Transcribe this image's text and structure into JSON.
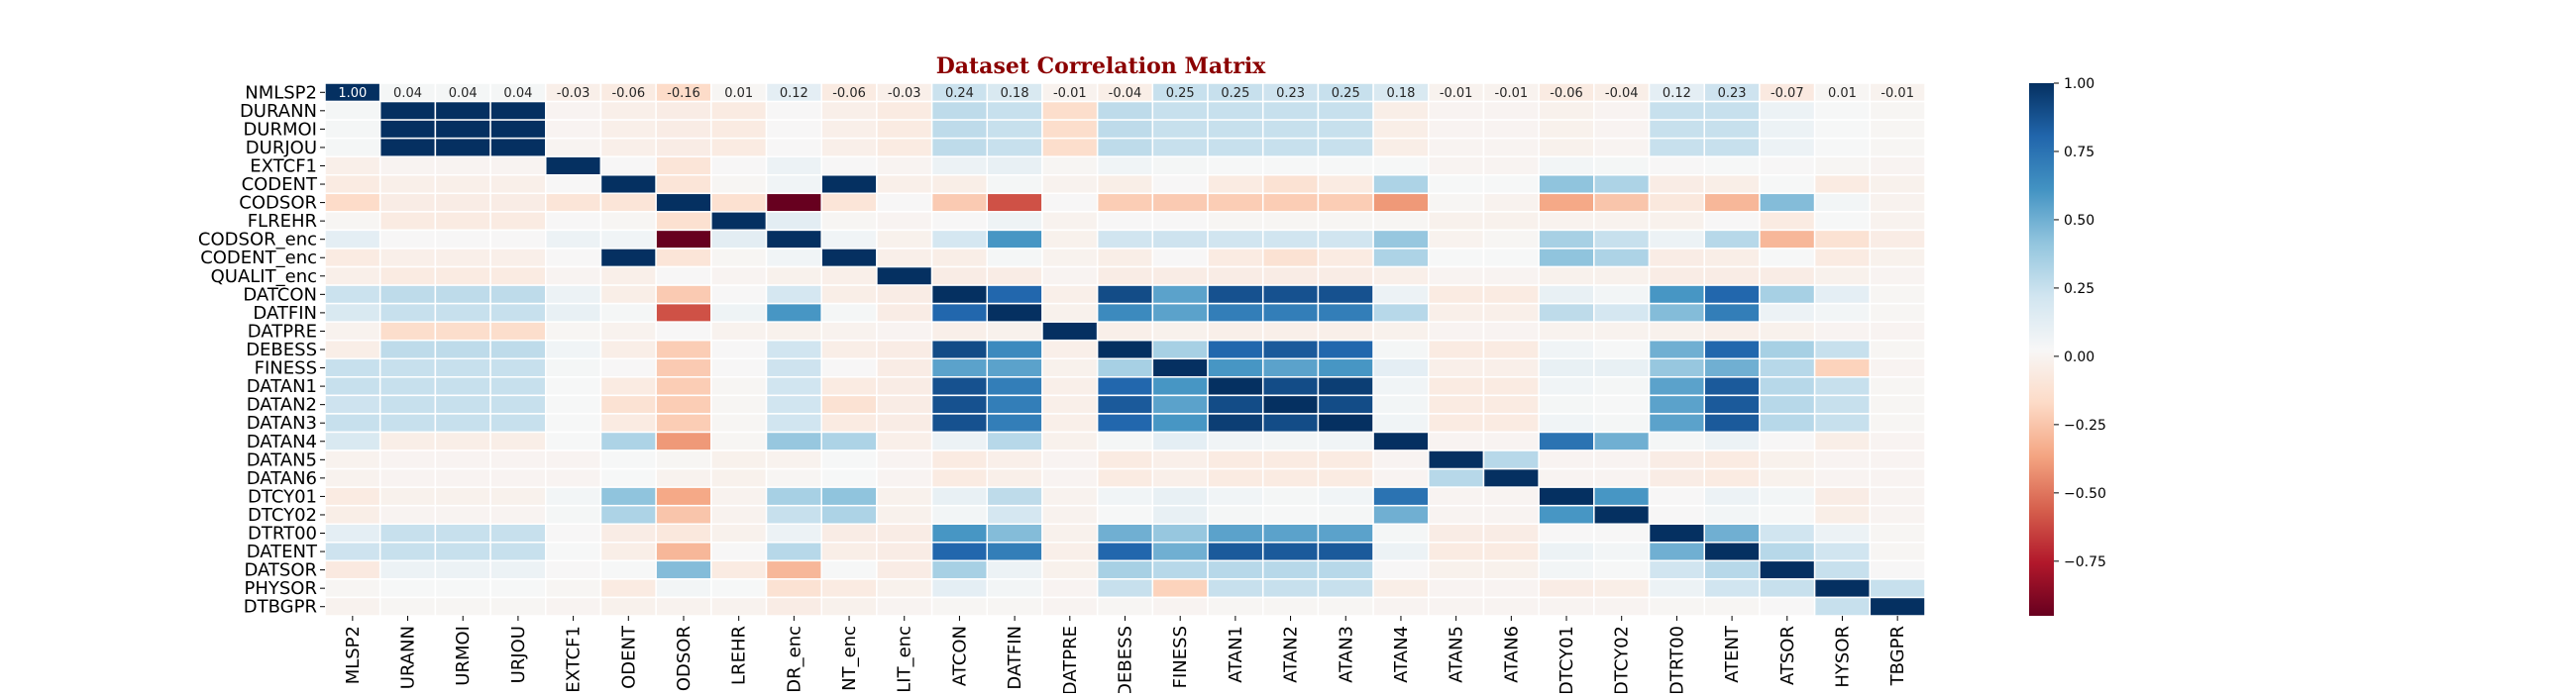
{
  "chart_data": {
    "type": "heatmap",
    "title": "Dataset Correlation Matrix",
    "variables": [
      "NMLSP2",
      "DURANN",
      "DURMOI",
      "DURJOU",
      "EXTCF1",
      "CODENT",
      "CODSOR",
      "FLREHR",
      "CODSOR_enc",
      "CODENT_enc",
      "QUALIT_enc",
      "DATCON",
      "DATFIN",
      "DATPRE",
      "DEBESS",
      "FINESS",
      "DATAN1",
      "DATAN2",
      "DATAN3",
      "DATAN4",
      "DATAN5",
      "DATAN6",
      "DTCY01",
      "DTCY02",
      "DTRT00",
      "DATENT",
      "DATSOR",
      "PHYSOR",
      "DTBGPR"
    ],
    "x_tick_labels": [
      "MLSP2",
      "URANN",
      "URMOI",
      "URJOU",
      "EXTCF1",
      "ODENT",
      "ODSOR",
      "LREHR",
      "DR_enc",
      "NT_enc",
      "LIT_enc",
      "ATCON",
      "DATFIN",
      "DATPRE",
      "DEBESS",
      "FINESS",
      "ATAN1",
      "ATAN2",
      "ATAN3",
      "ATAN4",
      "ATAN5",
      "ATAN6",
      "DTCY01",
      "DTCY02",
      "DTRT00",
      "ATENT",
      "ATSOR",
      "HYSOR",
      "TBGPR"
    ],
    "matrix": [
      [
        1.0,
        0.04,
        0.04,
        0.04,
        -0.03,
        -0.06,
        -0.16,
        0.01,
        0.12,
        -0.06,
        -0.03,
        0.24,
        0.18,
        -0.01,
        -0.04,
        0.25,
        0.25,
        0.23,
        0.25,
        0.18,
        -0.01,
        -0.01,
        -0.06,
        -0.04,
        0.12,
        0.23,
        -0.07,
        0.01,
        -0.01
      ],
      [
        0.04,
        1.0,
        1.0,
        1.0,
        0.0,
        -0.03,
        -0.05,
        -0.06,
        0.02,
        -0.03,
        -0.06,
        0.28,
        0.25,
        -0.15,
        0.28,
        0.25,
        0.25,
        0.25,
        0.25,
        -0.04,
        0.0,
        0.0,
        -0.02,
        0.0,
        0.25,
        0.25,
        0.08,
        0.03,
        0.01
      ],
      [
        0.04,
        1.0,
        1.0,
        1.0,
        0.0,
        -0.03,
        -0.05,
        -0.06,
        0.02,
        -0.03,
        -0.06,
        0.28,
        0.25,
        -0.15,
        0.28,
        0.25,
        0.25,
        0.25,
        0.25,
        -0.04,
        0.0,
        0.0,
        -0.02,
        0.0,
        0.25,
        0.25,
        0.08,
        0.03,
        0.01
      ],
      [
        0.04,
        1.0,
        1.0,
        1.0,
        0.0,
        -0.03,
        -0.05,
        -0.06,
        0.02,
        -0.03,
        -0.06,
        0.28,
        0.25,
        -0.15,
        0.28,
        0.25,
        0.25,
        0.25,
        0.25,
        -0.04,
        0.0,
        0.0,
        -0.02,
        0.0,
        0.25,
        0.25,
        0.08,
        0.03,
        0.01
      ],
      [
        -0.03,
        0.0,
        0.0,
        0.0,
        1.0,
        0.02,
        -0.1,
        0.02,
        0.08,
        0.02,
        0.0,
        0.08,
        0.1,
        0.01,
        0.06,
        0.04,
        0.03,
        0.03,
        0.03,
        0.03,
        0.0,
        0.0,
        0.05,
        0.04,
        0.02,
        0.03,
        0.02,
        0.01,
        0.0
      ],
      [
        -0.06,
        -0.03,
        -0.03,
        -0.03,
        0.02,
        1.0,
        -0.1,
        0.01,
        0.06,
        1.0,
        -0.03,
        -0.04,
        0.04,
        -0.01,
        -0.04,
        0.02,
        -0.06,
        -0.12,
        -0.06,
        0.33,
        0.03,
        0.03,
        0.42,
        0.33,
        -0.05,
        -0.04,
        0.03,
        -0.06,
        -0.02
      ],
      [
        -0.16,
        -0.05,
        -0.05,
        -0.05,
        -0.1,
        -0.1,
        1.0,
        -0.13,
        -1.0,
        -0.1,
        0.02,
        -0.23,
        -0.6,
        0.02,
        -0.22,
        -0.23,
        -0.22,
        -0.22,
        -0.22,
        -0.4,
        0.01,
        -0.01,
        -0.35,
        -0.25,
        -0.08,
        -0.3,
        0.45,
        0.05,
        -0.01
      ],
      [
        0.01,
        -0.06,
        -0.06,
        -0.06,
        0.02,
        0.01,
        -0.13,
        1.0,
        0.13,
        0.01,
        0.0,
        0.02,
        0.07,
        -0.01,
        0.02,
        0.02,
        0.01,
        0.01,
        0.01,
        0.01,
        -0.02,
        -0.02,
        -0.01,
        -0.01,
        -0.02,
        0.02,
        -0.06,
        0.03,
        -0.01
      ],
      [
        0.12,
        0.02,
        0.02,
        0.02,
        0.08,
        0.06,
        -1.0,
        0.13,
        1.0,
        0.06,
        -0.02,
        0.2,
        0.6,
        -0.02,
        0.22,
        0.23,
        0.22,
        0.22,
        0.22,
        0.4,
        -0.01,
        0.01,
        0.35,
        0.25,
        0.08,
        0.3,
        -0.3,
        -0.12,
        -0.05
      ],
      [
        -0.06,
        -0.03,
        -0.03,
        -0.03,
        0.02,
        1.0,
        -0.1,
        0.01,
        0.06,
        1.0,
        -0.03,
        -0.04,
        0.04,
        -0.01,
        -0.04,
        0.02,
        -0.06,
        -0.12,
        -0.06,
        0.33,
        0.03,
        0.03,
        0.42,
        0.33,
        -0.05,
        -0.04,
        0.03,
        -0.06,
        -0.02
      ],
      [
        -0.03,
        -0.06,
        -0.06,
        -0.06,
        0.0,
        -0.03,
        0.02,
        0.0,
        -0.02,
        -0.03,
        1.0,
        -0.05,
        -0.05,
        0.0,
        -0.05,
        -0.05,
        -0.05,
        -0.05,
        -0.05,
        -0.03,
        0.0,
        0.0,
        -0.02,
        -0.02,
        -0.05,
        -0.05,
        -0.05,
        -0.02,
        0.0
      ],
      [
        0.24,
        0.28,
        0.28,
        0.28,
        0.08,
        -0.04,
        -0.23,
        0.02,
        0.2,
        -0.04,
        -0.05,
        1.0,
        0.8,
        -0.03,
        0.9,
        0.55,
        0.88,
        0.88,
        0.88,
        0.08,
        -0.06,
        -0.06,
        0.1,
        0.05,
        0.6,
        0.8,
        0.35,
        0.12,
        0.01
      ],
      [
        0.18,
        0.25,
        0.25,
        0.25,
        0.1,
        0.04,
        -0.6,
        0.07,
        0.6,
        0.04,
        -0.05,
        0.8,
        1.0,
        -0.02,
        0.65,
        0.55,
        0.7,
        0.7,
        0.7,
        0.3,
        -0.03,
        -0.03,
        0.28,
        0.2,
        0.45,
        0.7,
        0.08,
        0.05,
        0.01
      ],
      [
        -0.01,
        -0.15,
        -0.15,
        -0.15,
        0.01,
        -0.01,
        0.02,
        -0.01,
        -0.02,
        -0.01,
        0.0,
        -0.03,
        -0.02,
        1.0,
        -0.03,
        -0.02,
        -0.03,
        -0.03,
        -0.03,
        -0.02,
        0.0,
        0.0,
        -0.01,
        -0.01,
        -0.02,
        -0.03,
        -0.02,
        0.0,
        0.0
      ],
      [
        -0.04,
        0.28,
        0.28,
        0.28,
        0.06,
        -0.04,
        -0.22,
        0.02,
        0.22,
        -0.04,
        -0.05,
        0.9,
        0.65,
        -0.03,
        1.0,
        0.35,
        0.8,
        0.85,
        0.8,
        0.04,
        -0.06,
        -0.06,
        0.06,
        0.03,
        0.5,
        0.8,
        0.35,
        0.25,
        0.01
      ],
      [
        0.25,
        0.25,
        0.25,
        0.25,
        0.04,
        0.02,
        -0.23,
        0.02,
        0.23,
        0.02,
        -0.05,
        0.55,
        0.55,
        -0.02,
        0.35,
        1.0,
        0.6,
        0.55,
        0.6,
        0.12,
        -0.03,
        -0.03,
        0.1,
        0.1,
        0.4,
        0.5,
        0.3,
        -0.2,
        0.0
      ],
      [
        0.25,
        0.25,
        0.25,
        0.25,
        0.03,
        -0.06,
        -0.22,
        0.01,
        0.22,
        -0.06,
        -0.05,
        0.88,
        0.7,
        -0.03,
        0.8,
        0.6,
        1.0,
        0.9,
        0.95,
        0.06,
        -0.06,
        -0.06,
        0.06,
        0.04,
        0.55,
        0.85,
        0.3,
        0.25,
        0.01
      ],
      [
        0.23,
        0.25,
        0.25,
        0.25,
        0.03,
        -0.12,
        -0.22,
        0.01,
        0.22,
        -0.12,
        -0.05,
        0.88,
        0.7,
        -0.03,
        0.85,
        0.55,
        0.9,
        1.0,
        0.9,
        0.05,
        -0.06,
        -0.06,
        0.04,
        0.03,
        0.55,
        0.85,
        0.3,
        0.25,
        0.01
      ],
      [
        0.25,
        0.25,
        0.25,
        0.25,
        0.03,
        -0.06,
        -0.22,
        0.01,
        0.22,
        -0.06,
        -0.05,
        0.88,
        0.7,
        -0.03,
        0.8,
        0.6,
        0.95,
        0.9,
        1.0,
        0.06,
        -0.06,
        -0.06,
        0.06,
        0.04,
        0.55,
        0.85,
        0.3,
        0.25,
        0.01
      ],
      [
        0.18,
        -0.04,
        -0.04,
        -0.04,
        0.03,
        0.33,
        -0.4,
        0.01,
        0.4,
        0.33,
        -0.03,
        0.08,
        0.3,
        -0.02,
        0.04,
        0.12,
        0.06,
        0.05,
        0.06,
        1.0,
        0.0,
        0.0,
        0.75,
        0.5,
        0.04,
        0.08,
        0.02,
        -0.04,
        0.0
      ],
      [
        -0.01,
        0.0,
        0.0,
        0.0,
        0.0,
        0.03,
        0.01,
        -0.02,
        -0.01,
        0.03,
        0.0,
        -0.06,
        -0.03,
        0.0,
        -0.06,
        -0.03,
        -0.06,
        -0.06,
        -0.06,
        0.0,
        1.0,
        0.3,
        0.0,
        0.0,
        -0.05,
        -0.06,
        -0.02,
        0.0,
        0.0
      ],
      [
        -0.01,
        0.0,
        0.0,
        0.0,
        0.0,
        0.03,
        -0.01,
        -0.02,
        0.01,
        0.03,
        0.0,
        -0.06,
        -0.03,
        0.0,
        -0.06,
        -0.03,
        -0.06,
        -0.06,
        -0.06,
        0.0,
        0.3,
        1.0,
        0.0,
        0.0,
        -0.05,
        -0.06,
        -0.02,
        0.0,
        0.0
      ],
      [
        -0.06,
        -0.02,
        -0.02,
        -0.02,
        0.05,
        0.42,
        -0.35,
        -0.01,
        0.35,
        0.42,
        -0.02,
        0.1,
        0.28,
        -0.01,
        0.06,
        0.1,
        0.06,
        0.04,
        0.06,
        0.75,
        0.0,
        0.0,
        1.0,
        0.6,
        0.02,
        0.08,
        0.05,
        -0.05,
        0.0
      ],
      [
        -0.04,
        0.0,
        0.0,
        0.0,
        0.04,
        0.33,
        -0.25,
        -0.01,
        0.25,
        0.33,
        -0.02,
        0.05,
        0.2,
        -0.01,
        0.03,
        0.1,
        0.04,
        0.03,
        0.04,
        0.5,
        0.0,
        0.0,
        0.6,
        1.0,
        0.02,
        0.05,
        0.03,
        -0.04,
        0.0
      ],
      [
        0.12,
        0.25,
        0.25,
        0.25,
        0.02,
        -0.05,
        -0.08,
        -0.02,
        0.08,
        -0.05,
        -0.05,
        0.6,
        0.45,
        -0.02,
        0.5,
        0.4,
        0.55,
        0.55,
        0.55,
        0.04,
        -0.05,
        -0.05,
        0.02,
        0.02,
        1.0,
        0.5,
        0.22,
        0.08,
        0.01
      ],
      [
        0.23,
        0.25,
        0.25,
        0.25,
        0.03,
        -0.04,
        -0.3,
        0.02,
        0.3,
        -0.04,
        -0.05,
        0.8,
        0.7,
        -0.03,
        0.8,
        0.5,
        0.85,
        0.85,
        0.85,
        0.08,
        -0.06,
        -0.06,
        0.08,
        0.05,
        0.5,
        1.0,
        0.3,
        0.22,
        0.01
      ],
      [
        -0.07,
        0.08,
        0.08,
        0.08,
        0.02,
        0.03,
        0.45,
        -0.06,
        -0.3,
        0.03,
        -0.05,
        0.35,
        0.08,
        -0.02,
        0.35,
        0.3,
        0.3,
        0.3,
        0.3,
        0.02,
        -0.02,
        -0.02,
        0.05,
        0.03,
        0.22,
        0.3,
        1.0,
        0.25,
        0.02
      ],
      [
        0.01,
        0.03,
        0.03,
        0.03,
        0.01,
        -0.06,
        0.05,
        0.03,
        -0.12,
        -0.06,
        -0.02,
        0.12,
        0.05,
        0.0,
        0.25,
        -0.2,
        0.25,
        0.25,
        0.25,
        -0.04,
        0.0,
        0.0,
        -0.05,
        -0.04,
        0.08,
        0.22,
        0.25,
        1.0,
        0.25
      ],
      [
        -0.01,
        0.01,
        0.01,
        0.01,
        0.0,
        -0.02,
        -0.01,
        -0.01,
        -0.05,
        -0.02,
        0.0,
        0.01,
        0.01,
        0.0,
        0.01,
        0.0,
        0.01,
        0.01,
        0.01,
        0.0,
        0.0,
        0.0,
        0.0,
        0.0,
        0.01,
        0.01,
        0.02,
        0.25,
        1.0
      ]
    ],
    "annotated_rows": [
      0
    ],
    "colormap": "RdBu",
    "vmin": -0.95,
    "vmax": 1.0,
    "colorbar_ticks": [
      1.0,
      0.75,
      0.5,
      0.25,
      0.0,
      -0.25,
      -0.5,
      -0.75
    ],
    "colorbar_tick_labels": [
      "1.00",
      "0.75",
      "0.50",
      "0.25",
      "0.00",
      "−0.25",
      "−0.50",
      "−0.75"
    ],
    "legend_position": "right"
  },
  "colors": {
    "title": "#8b0000",
    "cell_border": "#ffffff",
    "text": "#000000"
  }
}
